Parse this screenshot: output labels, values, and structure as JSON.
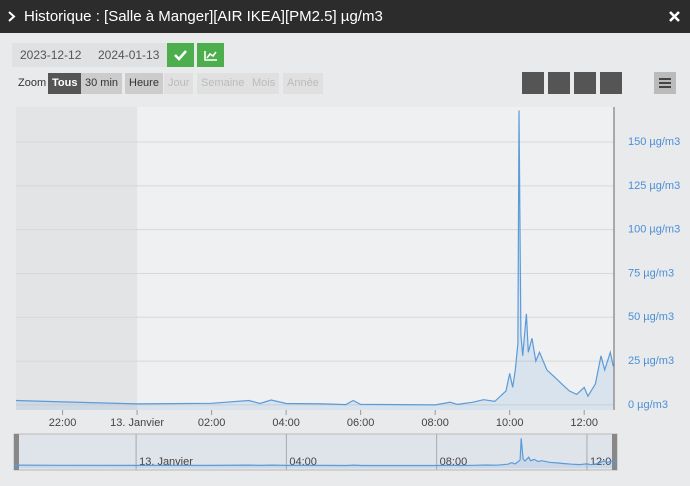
{
  "window": {
    "title": "Historique : [Salle à Manger][AIR IKEA][PM2.5] µg/m3",
    "date_from": "2023-12-12",
    "date_to": "2024-01-13",
    "zoom_label": "Zoom",
    "zoom_buttons": [
      "Tous",
      "30 min",
      "Heure",
      "Jour",
      "Semaine",
      "Mois",
      "Année"
    ]
  },
  "chart_data": {
    "type": "area",
    "color": "#5b9bd9",
    "x": [
      20.75,
      22,
      24,
      26,
      27,
      27.3,
      27.6,
      28,
      29,
      29.6,
      29.8,
      30,
      31,
      32,
      32.4,
      32.6,
      33,
      33.3,
      33.6,
      33.9,
      34.0,
      34.08,
      34.15,
      34.22,
      34.25,
      34.3,
      34.35,
      34.45,
      34.5,
      34.6,
      34.7,
      34.8,
      35.0,
      35.2,
      35.4,
      35.6,
      35.8,
      36.0,
      36.1,
      36.3,
      36.45,
      36.55,
      36.7,
      36.78
    ],
    "series": [
      {
        "name": "[Salle à Manger][AIR IKEA][PM2.5]",
        "color": "#5b9bd9",
        "values": [
          2.5,
          1.7,
          0.6,
          0.9,
          2.5,
          0.8,
          2.8,
          0.8,
          0.6,
          0.2,
          2.5,
          0.3,
          0.2,
          0,
          1.5,
          0.3,
          1.5,
          3,
          2,
          8,
          18,
          10,
          20,
          35,
          168,
          40,
          28,
          52,
          30,
          38,
          25,
          30,
          20,
          16,
          12,
          8,
          6,
          10,
          5,
          12,
          28,
          20,
          30,
          22
        ]
      }
    ],
    "xlim": [
      20.75,
      36.8
    ],
    "xticks": [
      {
        "value": 22,
        "label": "22:00"
      },
      {
        "value": 24,
        "label": "13. Janvier"
      },
      {
        "value": 26,
        "label": "02:00"
      },
      {
        "value": 28,
        "label": "04:00"
      },
      {
        "value": 30,
        "label": "06:00"
      },
      {
        "value": 32,
        "label": "08:00"
      },
      {
        "value": 34,
        "label": "10:00"
      },
      {
        "value": 36,
        "label": "12:00"
      }
    ],
    "ylim": [
      -2.9,
      170
    ],
    "yticks": [
      {
        "value": 0,
        "label": "0 µg/m3"
      },
      {
        "value": 25,
        "label": "25 µg/m3"
      },
      {
        "value": 50,
        "label": "50 µg/m3"
      },
      {
        "value": 75,
        "label": "75 µg/m3"
      },
      {
        "value": 100,
        "label": "100 µg/m3"
      },
      {
        "value": 125,
        "label": "125 µg/m3"
      },
      {
        "value": 150,
        "label": "150 µg/m3"
      }
    ],
    "grid": true
  }
}
